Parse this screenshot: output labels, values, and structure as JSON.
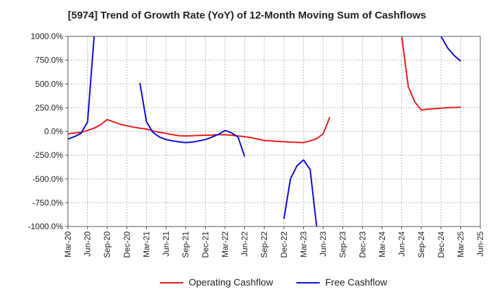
{
  "chart_data": {
    "type": "line",
    "title": "[5974]  Trend of Growth Rate (YoY) of 12-Month Moving Sum of Cashflows",
    "xlabel": "",
    "ylabel": "",
    "ylim": [
      -1000,
      1000
    ],
    "y_ticks": [
      "1000.0%",
      "750.0%",
      "500.0%",
      "250.0%",
      "0.0%",
      "-250.0%",
      "-500.0%",
      "-750.0%",
      "-1000.0%"
    ],
    "y_tick_values": [
      1000,
      750,
      500,
      250,
      0,
      -250,
      -500,
      -750,
      -1000
    ],
    "x_ticks": [
      "Mar-20",
      "Jun-20",
      "Sep-20",
      "Dec-20",
      "Mar-21",
      "Jun-21",
      "Sep-21",
      "Dec-21",
      "Mar-22",
      "Jun-22",
      "Sep-22",
      "Dec-22",
      "Mar-23",
      "Jun-23",
      "Sep-23",
      "Dec-23",
      "Mar-24",
      "Jun-24",
      "Sep-24",
      "Dec-24",
      "Mar-25",
      "Jun-25"
    ],
    "x_range": [
      "Mar-20",
      "Jun-25"
    ],
    "grid": true,
    "legend_position": "bottom",
    "series": [
      {
        "name": "Operating Cashflow",
        "color": "#e41a1c",
        "points": [
          [
            "Mar-20",
            -25
          ],
          [
            "Apr-20",
            -15
          ],
          [
            "May-20",
            -10
          ],
          [
            "Jun-20",
            10
          ],
          [
            "Jul-20",
            35
          ],
          [
            "Aug-20",
            70
          ],
          [
            "Sep-20",
            125
          ],
          [
            "Oct-20",
            100
          ],
          [
            "Nov-20",
            75
          ],
          [
            "Dec-20",
            60
          ],
          [
            "Jan-21",
            45
          ],
          [
            "Feb-21",
            35
          ],
          [
            "Mar-21",
            25
          ],
          [
            "Apr-21",
            5
          ],
          [
            "May-21",
            -10
          ],
          [
            "Jun-21",
            -20
          ],
          [
            "Jul-21",
            -35
          ],
          [
            "Aug-21",
            -45
          ],
          [
            "Sep-21",
            -48
          ],
          [
            "Oct-21",
            -45
          ],
          [
            "Nov-21",
            -42
          ],
          [
            "Dec-21",
            -40
          ],
          [
            "Jan-22",
            -38
          ],
          [
            "Feb-22",
            -35
          ],
          [
            "Mar-22",
            -35
          ],
          [
            "Apr-22",
            -40
          ],
          [
            "May-22",
            -48
          ],
          [
            "Jun-22",
            -55
          ],
          [
            "Jul-22",
            -65
          ],
          [
            "Aug-22",
            -80
          ],
          [
            "Sep-22",
            -95
          ],
          [
            "Oct-22",
            -100
          ],
          [
            "Nov-22",
            -105
          ],
          [
            "Dec-22",
            -108
          ],
          [
            "Jan-23",
            -112
          ],
          [
            "Feb-23",
            -115
          ],
          [
            "Mar-23",
            -117
          ],
          [
            "Apr-23",
            -100
          ],
          [
            "May-23",
            -75
          ],
          [
            "Jun-23",
            -25
          ],
          [
            "Jul-23",
            150
          ],
          null,
          [
            "Jun-24",
            1000
          ],
          [
            "Jul-24",
            470
          ],
          [
            "Aug-24",
            310
          ],
          [
            "Sep-24",
            225
          ],
          [
            "Oct-24",
            235
          ],
          [
            "Nov-24",
            240
          ],
          [
            "Dec-24",
            245
          ],
          [
            "Jan-25",
            250
          ],
          [
            "Feb-25",
            252
          ],
          [
            "Mar-25",
            255
          ]
        ]
      },
      {
        "name": "Free Cashflow",
        "color": "#0a0ad4",
        "points": [
          [
            "Mar-20",
            -80
          ],
          [
            "Apr-20",
            -55
          ],
          [
            "May-20",
            -20
          ],
          [
            "Jun-20",
            100
          ],
          [
            "Jul-20",
            1000
          ],
          null,
          [
            "Feb-21",
            510
          ],
          [
            "Mar-21",
            100
          ],
          [
            "Apr-21",
            -10
          ],
          [
            "May-21",
            -60
          ],
          [
            "Jun-21",
            -85
          ],
          [
            "Jul-21",
            -100
          ],
          [
            "Aug-21",
            -110
          ],
          [
            "Sep-21",
            -118
          ],
          [
            "Oct-21",
            -112
          ],
          [
            "Nov-21",
            -100
          ],
          [
            "Dec-21",
            -85
          ],
          [
            "Jan-22",
            -60
          ],
          [
            "Feb-22",
            -30
          ],
          [
            "Mar-22",
            10
          ],
          [
            "Apr-22",
            -15
          ],
          [
            "May-22",
            -60
          ],
          [
            "Jun-22",
            -265
          ],
          null,
          [
            "Dec-22",
            -920
          ],
          [
            "Jan-23",
            -500
          ],
          [
            "Feb-23",
            -360
          ],
          [
            "Mar-23",
            -300
          ],
          [
            "Apr-23",
            -400
          ],
          [
            "May-23",
            -1000
          ],
          null,
          [
            "Dec-24",
            1000
          ],
          [
            "Jan-25",
            880
          ],
          [
            "Feb-25",
            800
          ],
          [
            "Mar-25",
            740
          ]
        ]
      }
    ]
  }
}
